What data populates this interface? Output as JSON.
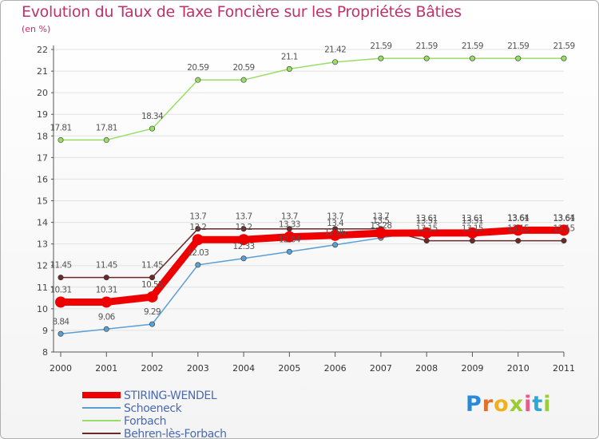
{
  "chart_data": {
    "type": "line",
    "title": "Evolution du Taux de Taxe Foncière sur les Propriétés Bâties",
    "unit_label": "(en %)",
    "xlabel": "",
    "ylabel": "",
    "ylim": [
      8,
      22
    ],
    "yticks": [
      "8",
      "9",
      "10",
      "11",
      "12",
      "13",
      "14",
      "15",
      "16",
      "17",
      "18",
      "19",
      "20",
      "21",
      "22"
    ],
    "categories": [
      "2000",
      "2001",
      "2002",
      "2003",
      "2004",
      "2005",
      "2006",
      "2007",
      "2008",
      "2009",
      "2010",
      "2011"
    ],
    "series": [
      {
        "name": "STIRING-WENDEL",
        "color": "#ee0000",
        "emphasis": true,
        "values": [
          10.31,
          10.31,
          10.55,
          13.2,
          13.2,
          13.33,
          13.4,
          13.5,
          13.51,
          13.51,
          13.64,
          13.64
        ],
        "labels": [
          "10.31",
          "10.31",
          "10.55",
          "13.2",
          "13.2",
          "13.33",
          "13.4",
          "13.5",
          "13.51",
          "13.51",
          "13.64",
          "13.64"
        ]
      },
      {
        "name": "Schoeneck",
        "color": "#5a9fd4",
        "values": [
          8.84,
          9.06,
          9.29,
          12.03,
          12.33,
          12.64,
          12.96,
          13.28,
          13.61,
          13.61,
          13.61,
          13.61
        ],
        "labels": [
          "8.84",
          "9.06",
          "9.29",
          "12.03",
          "12.33",
          "12.64",
          "12.96",
          "13.28",
          "13.61",
          "13.61",
          "13.61",
          "13.61"
        ]
      },
      {
        "name": "Forbach",
        "color": "#99dd66",
        "values": [
          17.81,
          17.81,
          18.34,
          20.59,
          20.59,
          21.1,
          21.42,
          21.59,
          21.59,
          21.59,
          21.59,
          21.59
        ],
        "labels": [
          "17.81",
          "17.81",
          "18.34",
          "20.59",
          "20.59",
          "21.1",
          "21.42",
          "21.59",
          "21.59",
          "21.59",
          "21.59",
          "21.59"
        ]
      },
      {
        "name": "Behren-lès-Forbach",
        "color": "#6b2a2a",
        "values": [
          11.45,
          11.45,
          11.45,
          13.7,
          13.7,
          13.7,
          13.7,
          13.7,
          13.15,
          13.15,
          13.15,
          13.15
        ],
        "labels": [
          "11.45",
          "11.45",
          "11.45",
          "13.7",
          "13.7",
          "13.7",
          "13.7",
          "13.7",
          "13.15",
          "13.15",
          "13.15",
          "13.15"
        ]
      }
    ],
    "legend_position": "bottom-left"
  },
  "logo_text": "Proxiti",
  "colors": {
    "title": "#c0306a",
    "axis": "#555555",
    "grid": "#e2e2e2"
  }
}
